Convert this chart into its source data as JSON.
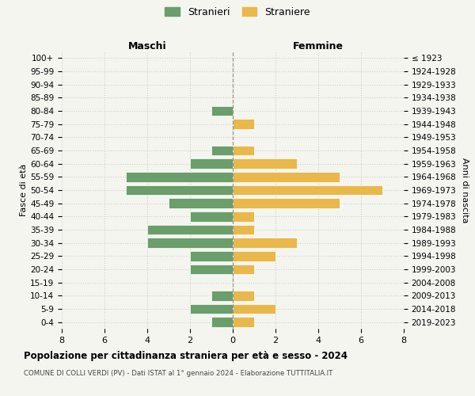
{
  "age_groups": [
    "100+",
    "95-99",
    "90-94",
    "85-89",
    "80-84",
    "75-79",
    "70-74",
    "65-69",
    "60-64",
    "55-59",
    "50-54",
    "45-49",
    "40-44",
    "35-39",
    "30-34",
    "25-29",
    "20-24",
    "15-19",
    "10-14",
    "5-9",
    "0-4"
  ],
  "birth_years": [
    "≤ 1923",
    "1924-1928",
    "1929-1933",
    "1934-1938",
    "1939-1943",
    "1944-1948",
    "1949-1953",
    "1954-1958",
    "1959-1963",
    "1964-1968",
    "1969-1973",
    "1974-1978",
    "1979-1983",
    "1984-1988",
    "1989-1993",
    "1994-1998",
    "1999-2003",
    "2004-2008",
    "2009-2013",
    "2014-2018",
    "2019-2023"
  ],
  "males": [
    0,
    0,
    0,
    0,
    1,
    0,
    0,
    1,
    2,
    5,
    5,
    3,
    2,
    4,
    4,
    2,
    2,
    0,
    1,
    2,
    1
  ],
  "females": [
    0,
    0,
    0,
    0,
    0,
    1,
    0,
    1,
    3,
    5,
    7,
    5,
    1,
    1,
    3,
    2,
    1,
    0,
    1,
    2,
    1
  ],
  "male_color": "#6a9e6a",
  "female_color": "#e8b84b",
  "background_color": "#f5f5f0",
  "grid_color": "#d0d0c8",
  "bar_edge_color": "white",
  "title": "Popolazione per cittadinanza straniera per età e sesso - 2024",
  "subtitle": "COMUNE DI COLLI VERDI (PV) - Dati ISTAT al 1° gennaio 2024 - Elaborazione TUTTITALIA.IT",
  "xlabel_left": "Maschi",
  "xlabel_right": "Femmine",
  "ylabel_left": "Fasce di età",
  "ylabel_right": "Anni di nascita",
  "legend_male": "Stranieri",
  "legend_female": "Straniere",
  "xlim": 8
}
